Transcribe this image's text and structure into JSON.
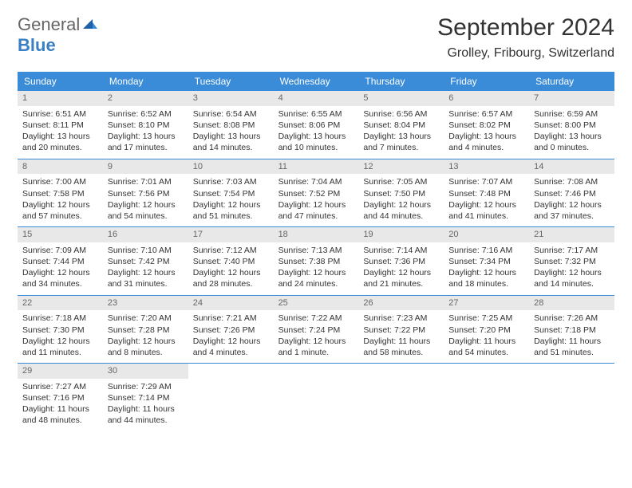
{
  "logo": {
    "part1": "General",
    "part2": "Blue"
  },
  "title": {
    "month": "September 2024",
    "location": "Grolley, Fribourg, Switzerland"
  },
  "day_headers": [
    "Sunday",
    "Monday",
    "Tuesday",
    "Wednesday",
    "Thursday",
    "Friday",
    "Saturday"
  ],
  "colors": {
    "header_bg": "#3a8bd8",
    "daynum_bg": "#e8e8e8",
    "rule": "#3a8bd8"
  },
  "days": [
    {
      "n": "1",
      "sr": "Sunrise: 6:51 AM",
      "ss": "Sunset: 8:11 PM",
      "d1": "Daylight: 13 hours",
      "d2": "and 20 minutes."
    },
    {
      "n": "2",
      "sr": "Sunrise: 6:52 AM",
      "ss": "Sunset: 8:10 PM",
      "d1": "Daylight: 13 hours",
      "d2": "and 17 minutes."
    },
    {
      "n": "3",
      "sr": "Sunrise: 6:54 AM",
      "ss": "Sunset: 8:08 PM",
      "d1": "Daylight: 13 hours",
      "d2": "and 14 minutes."
    },
    {
      "n": "4",
      "sr": "Sunrise: 6:55 AM",
      "ss": "Sunset: 8:06 PM",
      "d1": "Daylight: 13 hours",
      "d2": "and 10 minutes."
    },
    {
      "n": "5",
      "sr": "Sunrise: 6:56 AM",
      "ss": "Sunset: 8:04 PM",
      "d1": "Daylight: 13 hours",
      "d2": "and 7 minutes."
    },
    {
      "n": "6",
      "sr": "Sunrise: 6:57 AM",
      "ss": "Sunset: 8:02 PM",
      "d1": "Daylight: 13 hours",
      "d2": "and 4 minutes."
    },
    {
      "n": "7",
      "sr": "Sunrise: 6:59 AM",
      "ss": "Sunset: 8:00 PM",
      "d1": "Daylight: 13 hours",
      "d2": "and 0 minutes."
    },
    {
      "n": "8",
      "sr": "Sunrise: 7:00 AM",
      "ss": "Sunset: 7:58 PM",
      "d1": "Daylight: 12 hours",
      "d2": "and 57 minutes."
    },
    {
      "n": "9",
      "sr": "Sunrise: 7:01 AM",
      "ss": "Sunset: 7:56 PM",
      "d1": "Daylight: 12 hours",
      "d2": "and 54 minutes."
    },
    {
      "n": "10",
      "sr": "Sunrise: 7:03 AM",
      "ss": "Sunset: 7:54 PM",
      "d1": "Daylight: 12 hours",
      "d2": "and 51 minutes."
    },
    {
      "n": "11",
      "sr": "Sunrise: 7:04 AM",
      "ss": "Sunset: 7:52 PM",
      "d1": "Daylight: 12 hours",
      "d2": "and 47 minutes."
    },
    {
      "n": "12",
      "sr": "Sunrise: 7:05 AM",
      "ss": "Sunset: 7:50 PM",
      "d1": "Daylight: 12 hours",
      "d2": "and 44 minutes."
    },
    {
      "n": "13",
      "sr": "Sunrise: 7:07 AM",
      "ss": "Sunset: 7:48 PM",
      "d1": "Daylight: 12 hours",
      "d2": "and 41 minutes."
    },
    {
      "n": "14",
      "sr": "Sunrise: 7:08 AM",
      "ss": "Sunset: 7:46 PM",
      "d1": "Daylight: 12 hours",
      "d2": "and 37 minutes."
    },
    {
      "n": "15",
      "sr": "Sunrise: 7:09 AM",
      "ss": "Sunset: 7:44 PM",
      "d1": "Daylight: 12 hours",
      "d2": "and 34 minutes."
    },
    {
      "n": "16",
      "sr": "Sunrise: 7:10 AM",
      "ss": "Sunset: 7:42 PM",
      "d1": "Daylight: 12 hours",
      "d2": "and 31 minutes."
    },
    {
      "n": "17",
      "sr": "Sunrise: 7:12 AM",
      "ss": "Sunset: 7:40 PM",
      "d1": "Daylight: 12 hours",
      "d2": "and 28 minutes."
    },
    {
      "n": "18",
      "sr": "Sunrise: 7:13 AM",
      "ss": "Sunset: 7:38 PM",
      "d1": "Daylight: 12 hours",
      "d2": "and 24 minutes."
    },
    {
      "n": "19",
      "sr": "Sunrise: 7:14 AM",
      "ss": "Sunset: 7:36 PM",
      "d1": "Daylight: 12 hours",
      "d2": "and 21 minutes."
    },
    {
      "n": "20",
      "sr": "Sunrise: 7:16 AM",
      "ss": "Sunset: 7:34 PM",
      "d1": "Daylight: 12 hours",
      "d2": "and 18 minutes."
    },
    {
      "n": "21",
      "sr": "Sunrise: 7:17 AM",
      "ss": "Sunset: 7:32 PM",
      "d1": "Daylight: 12 hours",
      "d2": "and 14 minutes."
    },
    {
      "n": "22",
      "sr": "Sunrise: 7:18 AM",
      "ss": "Sunset: 7:30 PM",
      "d1": "Daylight: 12 hours",
      "d2": "and 11 minutes."
    },
    {
      "n": "23",
      "sr": "Sunrise: 7:20 AM",
      "ss": "Sunset: 7:28 PM",
      "d1": "Daylight: 12 hours",
      "d2": "and 8 minutes."
    },
    {
      "n": "24",
      "sr": "Sunrise: 7:21 AM",
      "ss": "Sunset: 7:26 PM",
      "d1": "Daylight: 12 hours",
      "d2": "and 4 minutes."
    },
    {
      "n": "25",
      "sr": "Sunrise: 7:22 AM",
      "ss": "Sunset: 7:24 PM",
      "d1": "Daylight: 12 hours",
      "d2": "and 1 minute."
    },
    {
      "n": "26",
      "sr": "Sunrise: 7:23 AM",
      "ss": "Sunset: 7:22 PM",
      "d1": "Daylight: 11 hours",
      "d2": "and 58 minutes."
    },
    {
      "n": "27",
      "sr": "Sunrise: 7:25 AM",
      "ss": "Sunset: 7:20 PM",
      "d1": "Daylight: 11 hours",
      "d2": "and 54 minutes."
    },
    {
      "n": "28",
      "sr": "Sunrise: 7:26 AM",
      "ss": "Sunset: 7:18 PM",
      "d1": "Daylight: 11 hours",
      "d2": "and 51 minutes."
    },
    {
      "n": "29",
      "sr": "Sunrise: 7:27 AM",
      "ss": "Sunset: 7:16 PM",
      "d1": "Daylight: 11 hours",
      "d2": "and 48 minutes."
    },
    {
      "n": "30",
      "sr": "Sunrise: 7:29 AM",
      "ss": "Sunset: 7:14 PM",
      "d1": "Daylight: 11 hours",
      "d2": "and 44 minutes."
    }
  ]
}
